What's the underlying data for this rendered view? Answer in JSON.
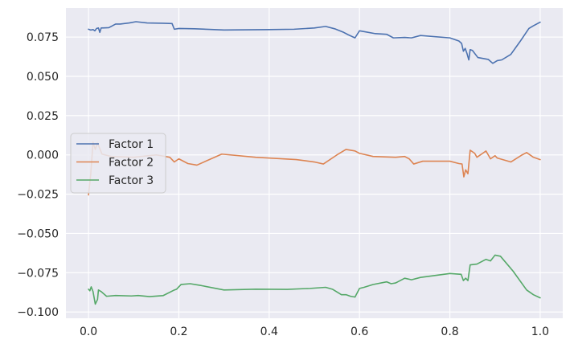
{
  "chart_data": {
    "type": "line",
    "title": "",
    "xlabel": "",
    "ylabel": "",
    "xlim": [
      -0.05,
      1.05
    ],
    "ylim": [
      -0.104,
      0.0935
    ],
    "xticks": [
      0.0,
      0.2,
      0.4,
      0.6,
      0.8,
      1.0
    ],
    "xtick_labels": [
      "0.0",
      "0.2",
      "0.4",
      "0.6",
      "0.8",
      "1.0"
    ],
    "yticks": [
      0.075,
      0.05,
      0.025,
      0.0,
      -0.025,
      -0.05,
      -0.075,
      -0.1
    ],
    "ytick_labels": [
      "0.075",
      "0.050",
      "0.025",
      "0.000",
      "−0.025",
      "−0.050",
      "−0.075",
      "−0.100"
    ],
    "grid": true,
    "legend_position": "center-left",
    "background": "#eaeaf2",
    "grid_color": "#ffffff",
    "series": [
      {
        "name": "Factor 1",
        "color": "#4c72b0",
        "points": [
          [
            0.0,
            0.08
          ],
          [
            0.005,
            0.0795
          ],
          [
            0.01,
            0.0798
          ],
          [
            0.014,
            0.079
          ],
          [
            0.018,
            0.0805
          ],
          [
            0.022,
            0.0808
          ],
          [
            0.025,
            0.078
          ],
          [
            0.028,
            0.0808
          ],
          [
            0.045,
            0.081
          ],
          [
            0.06,
            0.0833
          ],
          [
            0.07,
            0.0833
          ],
          [
            0.09,
            0.084
          ],
          [
            0.105,
            0.0848
          ],
          [
            0.13,
            0.084
          ],
          [
            0.165,
            0.0838
          ],
          [
            0.185,
            0.0836
          ],
          [
            0.19,
            0.08
          ],
          [
            0.2,
            0.0805
          ],
          [
            0.235,
            0.0803
          ],
          [
            0.3,
            0.0795
          ],
          [
            0.4,
            0.0798
          ],
          [
            0.455,
            0.08
          ],
          [
            0.5,
            0.0808
          ],
          [
            0.525,
            0.0818
          ],
          [
            0.545,
            0.0803
          ],
          [
            0.565,
            0.078
          ],
          [
            0.575,
            0.0765
          ],
          [
            0.59,
            0.0745
          ],
          [
            0.6,
            0.079
          ],
          [
            0.61,
            0.0785
          ],
          [
            0.635,
            0.0772
          ],
          [
            0.66,
            0.0768
          ],
          [
            0.675,
            0.0745
          ],
          [
            0.7,
            0.0748
          ],
          [
            0.715,
            0.0745
          ],
          [
            0.735,
            0.076
          ],
          [
            0.8,
            0.0745
          ],
          [
            0.82,
            0.0725
          ],
          [
            0.826,
            0.071
          ],
          [
            0.83,
            0.066
          ],
          [
            0.834,
            0.0678
          ],
          [
            0.838,
            0.0645
          ],
          [
            0.842,
            0.0605
          ],
          [
            0.845,
            0.067
          ],
          [
            0.85,
            0.0665
          ],
          [
            0.862,
            0.062
          ],
          [
            0.885,
            0.0608
          ],
          [
            0.895,
            0.0583
          ],
          [
            0.905,
            0.06
          ],
          [
            0.915,
            0.0605
          ],
          [
            0.935,
            0.064
          ],
          [
            0.955,
            0.072
          ],
          [
            0.975,
            0.0805
          ],
          [
            0.985,
            0.0822
          ],
          [
            1.0,
            0.0845
          ]
        ]
      },
      {
        "name": "Factor 2",
        "color": "#dd8452",
        "points": [
          [
            0.0,
            -0.0255
          ],
          [
            0.005,
            -0.012
          ],
          [
            0.01,
            0.008
          ],
          [
            0.015,
            0.0035
          ],
          [
            0.02,
            0.0075
          ],
          [
            0.03,
            0.0005
          ],
          [
            0.05,
            -0.001
          ],
          [
            0.1,
            -0.0015
          ],
          [
            0.15,
            0.0
          ],
          [
            0.18,
            -0.0015
          ],
          [
            0.19,
            -0.0045
          ],
          [
            0.2,
            -0.0025
          ],
          [
            0.22,
            -0.0055
          ],
          [
            0.24,
            -0.0065
          ],
          [
            0.295,
            0.0005
          ],
          [
            0.37,
            -0.0015
          ],
          [
            0.46,
            -0.003
          ],
          [
            0.5,
            -0.0045
          ],
          [
            0.52,
            -0.0058
          ],
          [
            0.55,
            0.0
          ],
          [
            0.57,
            0.0035
          ],
          [
            0.59,
            0.0025
          ],
          [
            0.6,
            0.001
          ],
          [
            0.63,
            -0.001
          ],
          [
            0.68,
            -0.0015
          ],
          [
            0.7,
            -0.001
          ],
          [
            0.71,
            -0.0025
          ],
          [
            0.72,
            -0.0058
          ],
          [
            0.74,
            -0.004
          ],
          [
            0.8,
            -0.004
          ],
          [
            0.82,
            -0.0055
          ],
          [
            0.827,
            -0.0058
          ],
          [
            0.831,
            -0.014
          ],
          [
            0.835,
            -0.0095
          ],
          [
            0.84,
            -0.012
          ],
          [
            0.845,
            0.003
          ],
          [
            0.855,
            0.001
          ],
          [
            0.86,
            -0.0015
          ],
          [
            0.88,
            0.0025
          ],
          [
            0.89,
            -0.0025
          ],
          [
            0.9,
            -0.0005
          ],
          [
            0.905,
            -0.002
          ],
          [
            0.935,
            -0.0045
          ],
          [
            0.96,
            0.0
          ],
          [
            0.97,
            0.0015
          ],
          [
            0.985,
            -0.0015
          ],
          [
            1.0,
            -0.003
          ]
        ]
      },
      {
        "name": "Factor 3",
        "color": "#55a868",
        "points": [
          [
            0.0,
            -0.0855
          ],
          [
            0.003,
            -0.0865
          ],
          [
            0.006,
            -0.084
          ],
          [
            0.01,
            -0.087
          ],
          [
            0.015,
            -0.095
          ],
          [
            0.02,
            -0.092
          ],
          [
            0.022,
            -0.086
          ],
          [
            0.028,
            -0.087
          ],
          [
            0.04,
            -0.09
          ],
          [
            0.06,
            -0.0895
          ],
          [
            0.095,
            -0.0898
          ],
          [
            0.11,
            -0.0895
          ],
          [
            0.135,
            -0.0902
          ],
          [
            0.165,
            -0.0896
          ],
          [
            0.19,
            -0.086
          ],
          [
            0.195,
            -0.0855
          ],
          [
            0.205,
            -0.0825
          ],
          [
            0.225,
            -0.082
          ],
          [
            0.25,
            -0.0832
          ],
          [
            0.3,
            -0.086
          ],
          [
            0.37,
            -0.0855
          ],
          [
            0.44,
            -0.0856
          ],
          [
            0.49,
            -0.085
          ],
          [
            0.525,
            -0.0843
          ],
          [
            0.54,
            -0.0855
          ],
          [
            0.56,
            -0.089
          ],
          [
            0.57,
            -0.089
          ],
          [
            0.58,
            -0.09
          ],
          [
            0.59,
            -0.0905
          ],
          [
            0.6,
            -0.085
          ],
          [
            0.61,
            -0.0843
          ],
          [
            0.63,
            -0.0825
          ],
          [
            0.66,
            -0.0808
          ],
          [
            0.67,
            -0.082
          ],
          [
            0.68,
            -0.0815
          ],
          [
            0.7,
            -0.0785
          ],
          [
            0.715,
            -0.0795
          ],
          [
            0.735,
            -0.078
          ],
          [
            0.8,
            -0.0755
          ],
          [
            0.825,
            -0.076
          ],
          [
            0.83,
            -0.08
          ],
          [
            0.835,
            -0.0785
          ],
          [
            0.84,
            -0.08
          ],
          [
            0.845,
            -0.07
          ],
          [
            0.86,
            -0.0695
          ],
          [
            0.88,
            -0.0665
          ],
          [
            0.89,
            -0.0675
          ],
          [
            0.9,
            -0.0638
          ],
          [
            0.912,
            -0.0645
          ],
          [
            0.94,
            -0.074
          ],
          [
            0.97,
            -0.086
          ],
          [
            0.985,
            -0.089
          ],
          [
            1.0,
            -0.091
          ]
        ]
      }
    ]
  }
}
